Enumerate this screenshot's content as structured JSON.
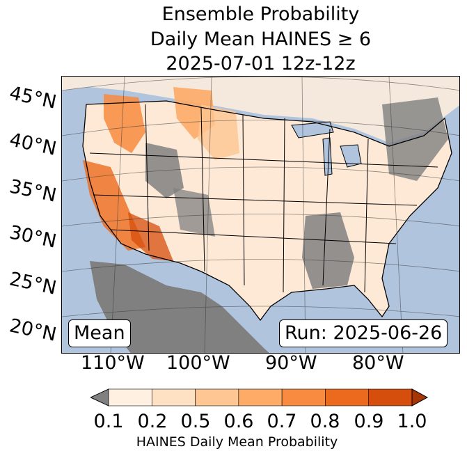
{
  "title": {
    "line1": "Ensemble Probability",
    "line2": "Daily Mean HAINES ≥ 6",
    "line3": "2025-07-01 12z-12z"
  },
  "map": {
    "lat_labels": [
      "45°N",
      "40°N",
      "35°N",
      "30°N",
      "25°N",
      "20°N"
    ],
    "lon_labels": [
      "110°W",
      "100°W",
      "90°W",
      "80°W"
    ],
    "mean_label": "Mean",
    "run_label": "Run: 2025-06-26",
    "ocean_color": "#b0c4de",
    "land_masked_color": "#808080",
    "background_land_color": "#fde9d6"
  },
  "colorbar": {
    "ticks": [
      "0.1",
      "0.2",
      "0.5",
      "0.6",
      "0.7",
      "0.8",
      "0.9",
      "1.0"
    ],
    "colors": [
      "#fff0e1",
      "#fee0c2",
      "#fdc692",
      "#fdab67",
      "#f88b3f",
      "#ec6a1d",
      "#d54e0c"
    ],
    "under_color": "#808080",
    "over_color": "#a63603",
    "label": "HAINES Daily Mean Probability"
  }
}
